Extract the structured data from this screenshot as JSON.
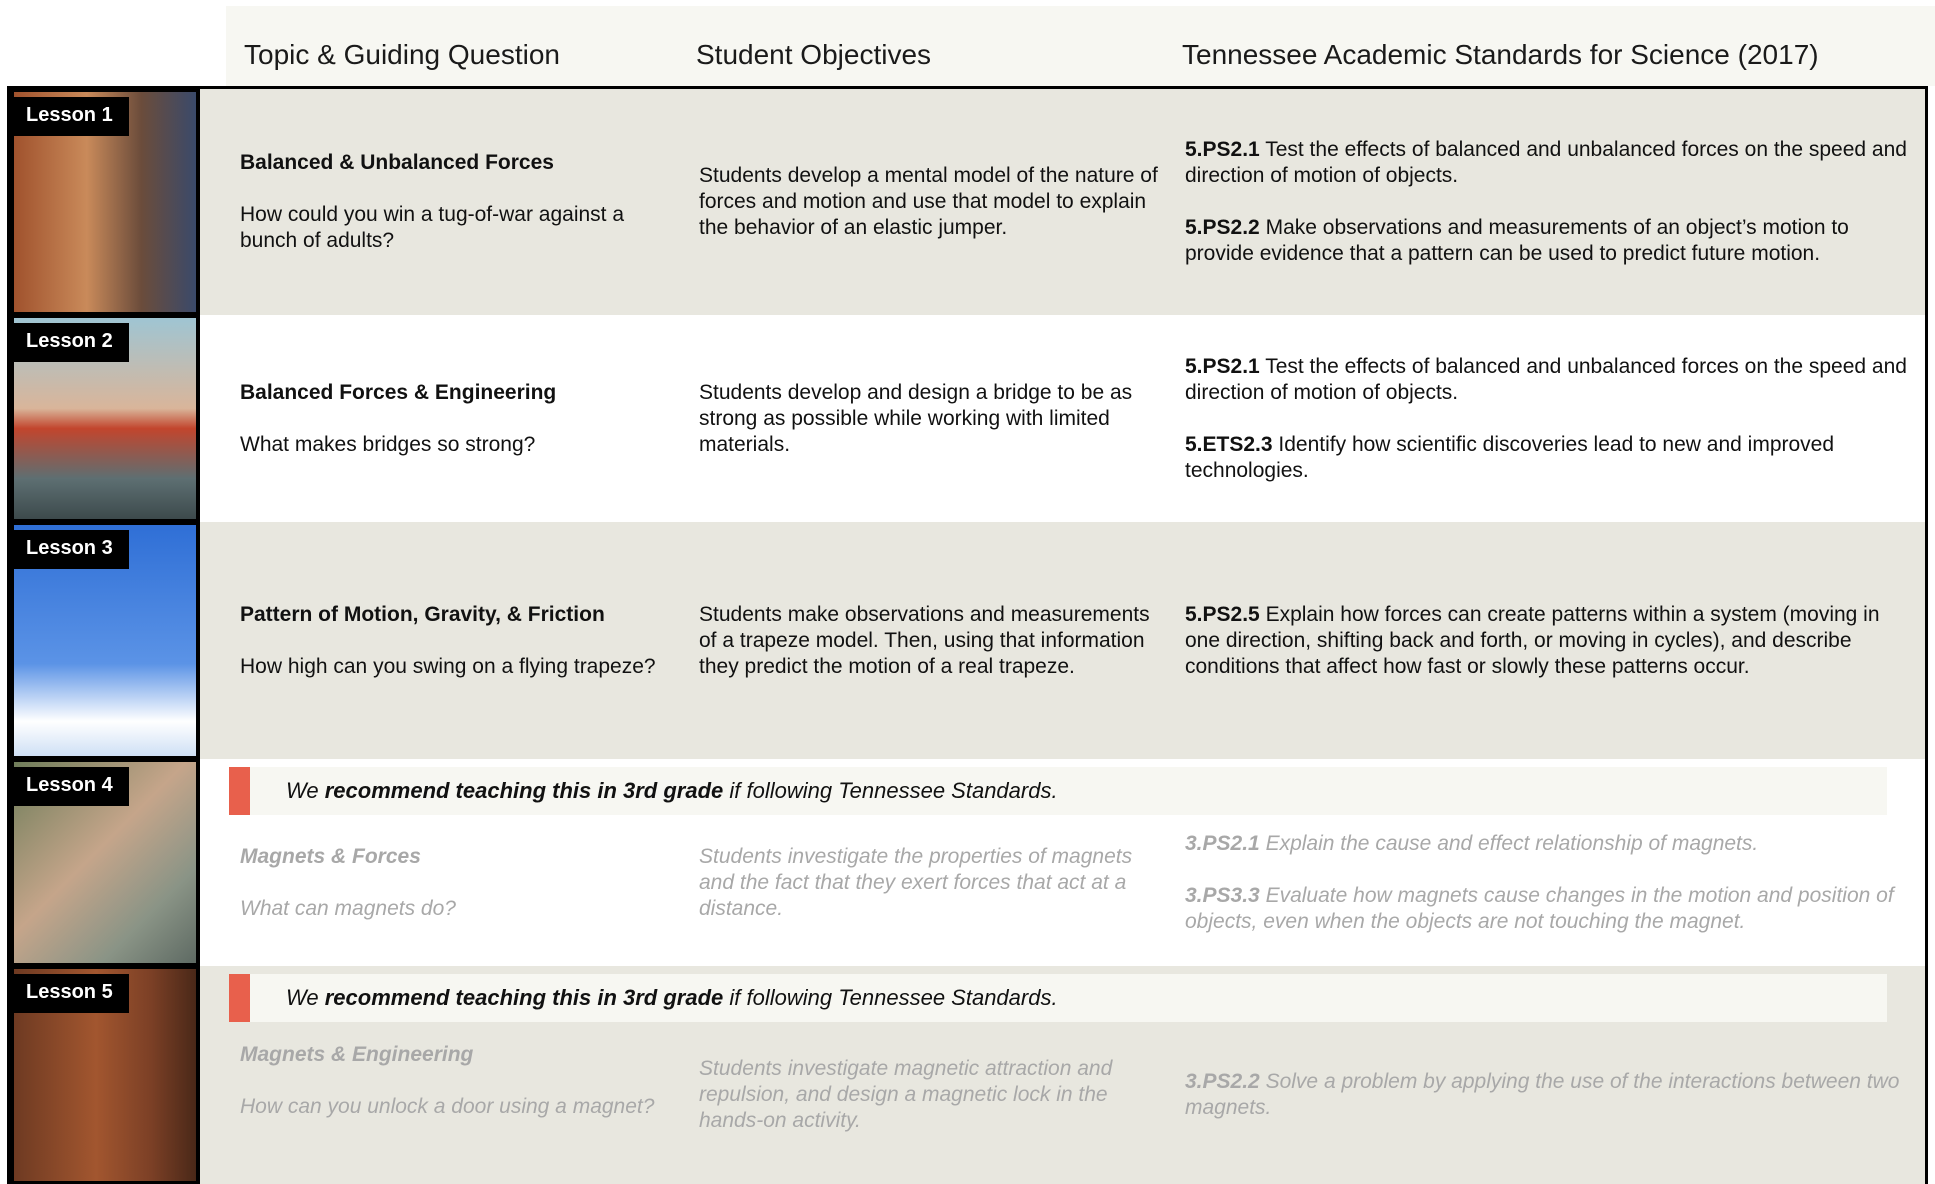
{
  "header": {
    "columns": [
      "Topic & Guiding Question",
      "Student Objectives",
      "Tennessee Academic Standards for Science (2017)"
    ]
  },
  "lessons": [
    {
      "label": "Lesson 1",
      "title": "Balanced & Unbalanced Forces",
      "question": "How could you win a tug-of-war against a bunch of adults?",
      "objective": "Students develop a mental model of the nature of forces and motion and use that model to explain the behavior of an elastic jumper.",
      "standards": [
        {
          "code": "5.PS2.1",
          "text": "Test the effects of balanced and unbalanced forces on the speed and direction of motion of objects."
        },
        {
          "code": "5.PS2.2",
          "text": "Make observations and measurements of an object’s motion to provide evidence that a pattern can be used to predict future motion."
        }
      ]
    },
    {
      "label": "Lesson 2",
      "title": "Balanced Forces & Engineering",
      "question": "What makes bridges so strong?",
      "objective": "Students develop and design a bridge to be as strong as possible while working with limited materials.",
      "standards": [
        {
          "code": "5.PS2.1",
          "text": "Test the effects of balanced and unbalanced forces on the speed and direction of motion of objects."
        },
        {
          "code": "5.ETS2.3",
          "text": "Identify how scientific discoveries lead to new and improved technologies."
        }
      ]
    },
    {
      "label": "Lesson 3",
      "title": "Pattern of Motion, Gravity, & Friction",
      "question": "How high can you swing on a flying trapeze?",
      "objective": "Students make observations and measurements of a trapeze model. Then, using that information they predict the motion of a real trapeze.",
      "standards": [
        {
          "code": "5.PS2.5",
          "text": "Explain how forces can create patterns within a system (moving in one direction, shifting back and forth, or moving in cycles), and describe conditions that affect how fast or slowly these patterns occur."
        }
      ]
    },
    {
      "label": "Lesson 4",
      "note": {
        "before": "We",
        "emphasis": "recommend teaching this in 3rd grade",
        "after": "if following Tennessee Standards."
      },
      "title": "Magnets & Forces",
      "question": "What can magnets do?",
      "objective": "Students investigate the properties of magnets and the fact that they exert forces that act at a distance.",
      "standards": [
        {
          "code": "3.PS2.1",
          "text": "Explain the cause and effect relationship of magnets."
        },
        {
          "code": "3.PS3.3",
          "text": "Evaluate how magnets cause changes in the motion and position of objects, even when the objects are not touching the magnet."
        }
      ]
    },
    {
      "label": "Lesson 5",
      "note": {
        "before": "We",
        "emphasis": "recommend teaching this in 3rd grade",
        "after": "if following Tennessee Standards."
      },
      "title": "Magnets & Engineering",
      "question": "How can you unlock a door using a magnet?",
      "objective": "Students investigate magnetic attraction and repulsion, and design a magnetic lock in the hands-on activity.",
      "standards": [
        {
          "code": "3.PS2.2",
          "text": "Solve a problem by applying the use of the interactions between two magnets."
        }
      ]
    }
  ]
}
